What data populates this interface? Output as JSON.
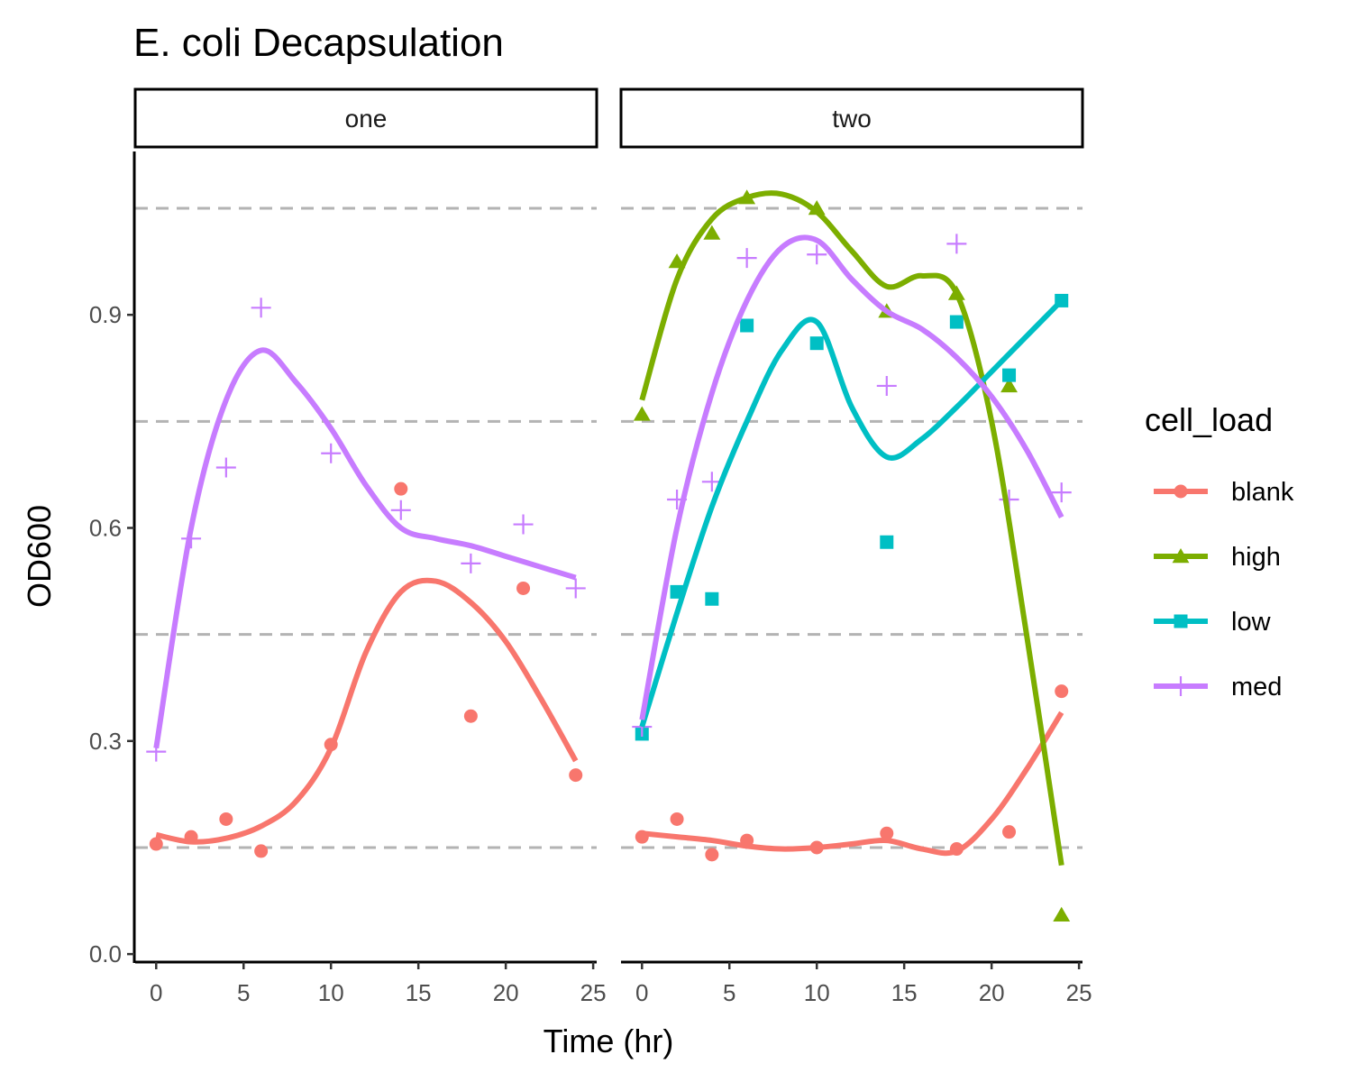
{
  "chart_data": {
    "type": "scatter",
    "title": "E. coli Decapsulation",
    "xlabel": "Time (hr)",
    "ylabel": "OD600",
    "xlim": [
      -1.2,
      25.2
    ],
    "ylim": [
      -0.01,
      1.13
    ],
    "x_ticks": [
      0,
      5,
      10,
      15,
      20,
      25
    ],
    "x_tick_labels": [
      "0",
      "5",
      "10",
      "15",
      "20",
      "25"
    ],
    "y_ticks": [
      0.0,
      0.3,
      0.6,
      0.9
    ],
    "y_tick_labels": [
      "0.0",
      "0.3",
      "0.6",
      "0.9"
    ],
    "reference_lines": [
      0.15,
      0.45,
      0.75,
      1.05
    ],
    "grid": false,
    "legend": {
      "title": "cell_load",
      "position": "right",
      "items": [
        {
          "name": "blank",
          "color": "#F8766D",
          "shape": "circle"
        },
        {
          "name": "high",
          "color": "#7CAE00",
          "shape": "triangle"
        },
        {
          "name": "low",
          "color": "#00BFC4",
          "shape": "square"
        },
        {
          "name": "med",
          "color": "#C77CFF",
          "shape": "plus"
        }
      ]
    },
    "panels": [
      {
        "strip": "one",
        "series": [
          {
            "name": "blank",
            "points": [
              [
                0,
                0.155
              ],
              [
                2,
                0.165
              ],
              [
                4,
                0.19
              ],
              [
                6,
                0.145
              ],
              [
                10,
                0.295
              ],
              [
                14,
                0.655
              ],
              [
                18,
                0.335
              ],
              [
                21,
                0.515
              ],
              [
                24,
                0.252
              ]
            ],
            "smooth": [
              [
                0,
                0.168
              ],
              [
                2,
                0.158
              ],
              [
                4,
                0.163
              ],
              [
                6,
                0.18
              ],
              [
                8,
                0.215
              ],
              [
                10,
                0.29
              ],
              [
                12,
                0.425
              ],
              [
                14,
                0.51
              ],
              [
                16,
                0.525
              ],
              [
                18,
                0.495
              ],
              [
                20,
                0.44
              ],
              [
                22,
                0.36
              ],
              [
                24,
                0.272
              ]
            ]
          },
          {
            "name": "med",
            "points": [
              [
                0,
                0.285
              ],
              [
                2,
                0.585
              ],
              [
                4,
                0.685
              ],
              [
                6,
                0.91
              ],
              [
                10,
                0.705
              ],
              [
                14,
                0.625
              ],
              [
                18,
                0.55
              ],
              [
                21,
                0.605
              ],
              [
                24,
                0.515
              ]
            ],
            "smooth": [
              [
                0,
                0.29
              ],
              [
                2,
                0.6
              ],
              [
                4,
                0.78
              ],
              [
                6,
                0.85
              ],
              [
                8,
                0.805
              ],
              [
                10,
                0.74
              ],
              [
                12,
                0.66
              ],
              [
                14,
                0.6
              ],
              [
                16,
                0.585
              ],
              [
                18,
                0.575
              ],
              [
                20,
                0.56
              ],
              [
                22,
                0.545
              ],
              [
                24,
                0.53
              ]
            ]
          }
        ]
      },
      {
        "strip": "two",
        "series": [
          {
            "name": "blank",
            "points": [
              [
                0,
                0.165
              ],
              [
                2,
                0.19
              ],
              [
                4,
                0.14
              ],
              [
                6,
                0.16
              ],
              [
                10,
                0.15
              ],
              [
                14,
                0.17
              ],
              [
                18,
                0.148
              ],
              [
                21,
                0.172
              ],
              [
                24,
                0.37
              ]
            ],
            "smooth": [
              [
                0,
                0.17
              ],
              [
                2,
                0.165
              ],
              [
                4,
                0.16
              ],
              [
                6,
                0.152
              ],
              [
                8,
                0.148
              ],
              [
                10,
                0.15
              ],
              [
                12,
                0.155
              ],
              [
                14,
                0.16
              ],
              [
                16,
                0.148
              ],
              [
                18,
                0.145
              ],
              [
                20,
                0.19
              ],
              [
                22,
                0.26
              ],
              [
                24,
                0.34
              ]
            ]
          },
          {
            "name": "high",
            "points": [
              [
                0,
                0.76
              ],
              [
                2,
                0.975
              ],
              [
                4,
                1.015
              ],
              [
                6,
                1.065
              ],
              [
                10,
                1.05
              ],
              [
                14,
                0.905
              ],
              [
                18,
                0.93
              ],
              [
                21,
                0.8
              ],
              [
                24,
                0.055
              ]
            ],
            "smooth": [
              [
                0,
                0.78
              ],
              [
                2,
                0.95
              ],
              [
                4,
                1.035
              ],
              [
                6,
                1.065
              ],
              [
                8,
                1.07
              ],
              [
                10,
                1.045
              ],
              [
                12,
                0.99
              ],
              [
                14,
                0.94
              ],
              [
                16,
                0.955
              ],
              [
                18,
                0.93
              ],
              [
                20,
                0.75
              ],
              [
                22,
                0.45
              ],
              [
                24,
                0.125
              ]
            ]
          },
          {
            "name": "low",
            "points": [
              [
                0,
                0.31
              ],
              [
                2,
                0.51
              ],
              [
                4,
                0.5
              ],
              [
                6,
                0.885
              ],
              [
                10,
                0.86
              ],
              [
                14,
                0.58
              ],
              [
                18,
                0.89
              ],
              [
                21,
                0.815
              ],
              [
                24,
                0.92
              ]
            ],
            "smooth": [
              [
                0,
                0.32
              ],
              [
                2,
                0.48
              ],
              [
                4,
                0.63
              ],
              [
                6,
                0.75
              ],
              [
                8,
                0.85
              ],
              [
                10,
                0.89
              ],
              [
                12,
                0.77
              ],
              [
                14,
                0.7
              ],
              [
                16,
                0.725
              ],
              [
                18,
                0.77
              ],
              [
                20,
                0.82
              ],
              [
                22,
                0.87
              ],
              [
                24,
                0.92
              ]
            ]
          },
          {
            "name": "med",
            "points": [
              [
                0,
                0.32
              ],
              [
                2,
                0.64
              ],
              [
                4,
                0.665
              ],
              [
                6,
                0.98
              ],
              [
                10,
                0.985
              ],
              [
                14,
                0.8
              ],
              [
                18,
                1.0
              ],
              [
                21,
                0.64
              ],
              [
                24,
                0.65
              ]
            ],
            "smooth": [
              [
                0,
                0.33
              ],
              [
                2,
                0.6
              ],
              [
                4,
                0.79
              ],
              [
                6,
                0.92
              ],
              [
                8,
                0.995
              ],
              [
                10,
                1.005
              ],
              [
                12,
                0.95
              ],
              [
                14,
                0.905
              ],
              [
                16,
                0.88
              ],
              [
                18,
                0.84
              ],
              [
                20,
                0.785
              ],
              [
                22,
                0.71
              ],
              [
                24,
                0.615
              ]
            ]
          }
        ]
      }
    ]
  }
}
